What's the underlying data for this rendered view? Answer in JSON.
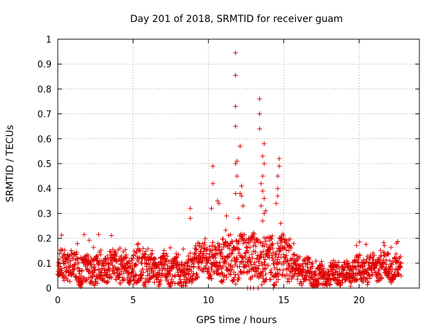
{
  "chart_data": {
    "type": "scatter",
    "title": "Day 201 of 2018, SRMTID for receiver guam",
    "xlabel": "GPS time / hours",
    "ylabel": "SRMTID / TECUs",
    "xlim": [
      0,
      24
    ],
    "ylim": [
      0,
      1
    ],
    "xticks": [
      "0",
      "5",
      "10",
      "15",
      "20"
    ],
    "yticks": [
      "0",
      "0.1",
      "0.2",
      "0.3",
      "0.4",
      "0.5",
      "0.6",
      "0.7",
      "0.8",
      "0.9",
      "1"
    ],
    "marker": "+",
    "color": "#e00000",
    "x_data_end": 22.8,
    "background_segments": [
      {
        "x0": 0,
        "x1": 5,
        "base": 0.08,
        "spread": 0.06,
        "max": 0.22
      },
      {
        "x0": 5,
        "x1": 6,
        "base": 0.1,
        "spread": 0.08,
        "max": 0.23
      },
      {
        "x0": 6,
        "x1": 9,
        "base": 0.07,
        "spread": 0.06,
        "max": 0.18
      },
      {
        "x0": 9,
        "x1": 11,
        "base": 0.11,
        "spread": 0.07,
        "max": 0.2
      },
      {
        "x0": 11,
        "x1": 15.5,
        "base": 0.12,
        "spread": 0.09,
        "max": 0.25
      },
      {
        "x0": 15.5,
        "x1": 17,
        "base": 0.07,
        "spread": 0.05,
        "max": 0.19
      },
      {
        "x0": 17,
        "x1": 19.5,
        "base": 0.05,
        "spread": 0.04,
        "max": 0.11
      },
      {
        "x0": 19.5,
        "x1": 22.8,
        "base": 0.08,
        "spread": 0.05,
        "max": 0.19
      }
    ],
    "outliers": [
      {
        "x": 8.8,
        "y": 0.32
      },
      {
        "x": 8.8,
        "y": 0.28
      },
      {
        "x": 10.3,
        "y": 0.49
      },
      {
        "x": 10.3,
        "y": 0.42
      },
      {
        "x": 10.2,
        "y": 0.32
      },
      {
        "x": 10.6,
        "y": 0.35
      },
      {
        "x": 10.7,
        "y": 0.34
      },
      {
        "x": 11.2,
        "y": 0.29
      },
      {
        "x": 11.8,
        "y": 0.945
      },
      {
        "x": 11.8,
        "y": 0.855
      },
      {
        "x": 11.8,
        "y": 0.73
      },
      {
        "x": 11.8,
        "y": 0.65
      },
      {
        "x": 11.9,
        "y": 0.51
      },
      {
        "x": 11.8,
        "y": 0.5
      },
      {
        "x": 11.9,
        "y": 0.45
      },
      {
        "x": 12.1,
        "y": 0.57
      },
      {
        "x": 12.2,
        "y": 0.41
      },
      {
        "x": 12.2,
        "y": 0.37
      },
      {
        "x": 12.1,
        "y": 0.38
      },
      {
        "x": 11.8,
        "y": 0.38
      },
      {
        "x": 12.3,
        "y": 0.33
      },
      {
        "x": 12.0,
        "y": 0.28
      },
      {
        "x": 13.4,
        "y": 0.76
      },
      {
        "x": 13.4,
        "y": 0.7
      },
      {
        "x": 13.4,
        "y": 0.64
      },
      {
        "x": 13.6,
        "y": 0.53
      },
      {
        "x": 13.7,
        "y": 0.58
      },
      {
        "x": 13.7,
        "y": 0.5
      },
      {
        "x": 13.6,
        "y": 0.45
      },
      {
        "x": 13.5,
        "y": 0.42
      },
      {
        "x": 13.6,
        "y": 0.39
      },
      {
        "x": 13.7,
        "y": 0.36
      },
      {
        "x": 13.5,
        "y": 0.33
      },
      {
        "x": 13.7,
        "y": 0.3
      },
      {
        "x": 13.6,
        "y": 0.27
      },
      {
        "x": 13.8,
        "y": 0.31
      },
      {
        "x": 14.7,
        "y": 0.52
      },
      {
        "x": 14.7,
        "y": 0.49
      },
      {
        "x": 14.6,
        "y": 0.45
      },
      {
        "x": 14.6,
        "y": 0.4
      },
      {
        "x": 14.6,
        "y": 0.37
      },
      {
        "x": 14.5,
        "y": 0.34
      },
      {
        "x": 14.8,
        "y": 0.26
      },
      {
        "x": 12.6,
        "y": 0.0
      },
      {
        "x": 12.8,
        "y": 0.0
      },
      {
        "x": 13.0,
        "y": 0.0
      },
      {
        "x": 13.3,
        "y": 0.0
      },
      {
        "x": 14.3,
        "y": 0.0
      }
    ]
  }
}
